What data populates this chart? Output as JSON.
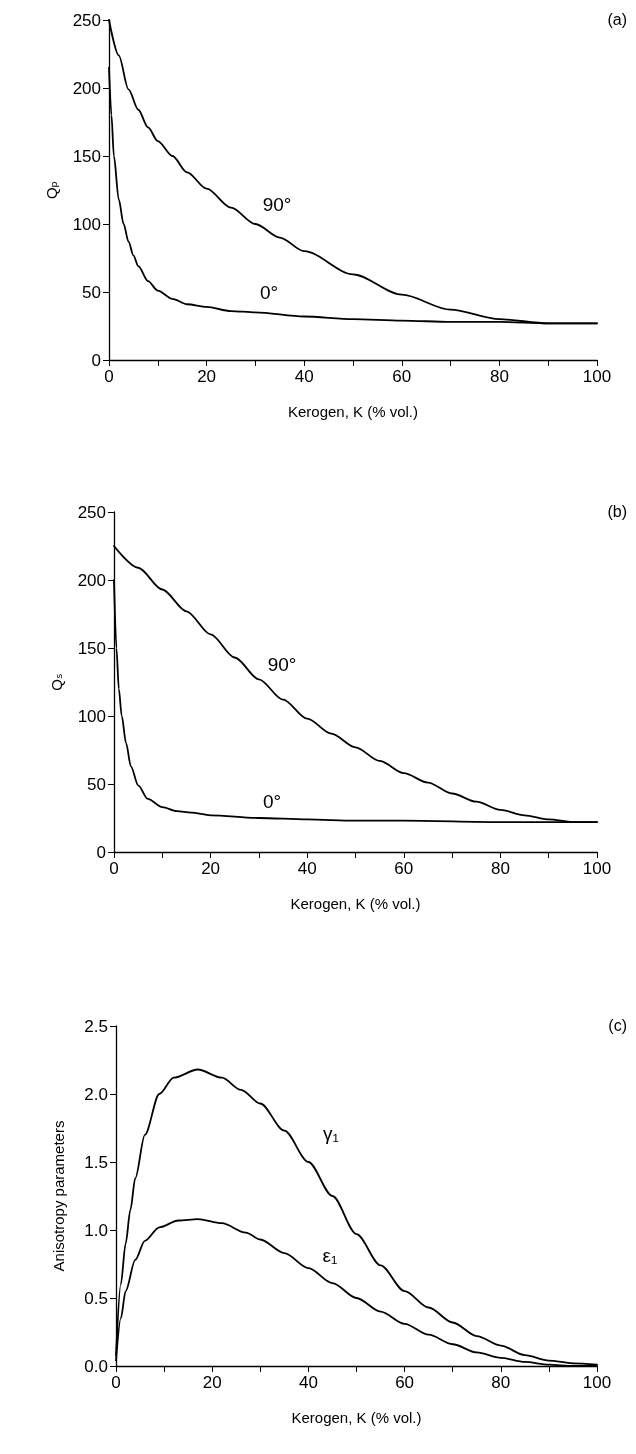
{
  "chart_data": [
    {
      "type": "line",
      "title": "(a)",
      "xlabel": "Kerogen, K (% vol.)",
      "ylabel": "Qₚ",
      "xlim": [
        0,
        100
      ],
      "ylim": [
        0,
        250
      ],
      "xticks": [
        0,
        {
          "value": 10,
          "label": null
        },
        20,
        {
          "value": 30,
          "label": null
        },
        40,
        {
          "value": 50,
          "label": null
        },
        60,
        {
          "value": 70,
          "label": null
        },
        80,
        {
          "value": 90,
          "label": null
        },
        100
      ],
      "yticks": [
        0,
        50,
        100,
        150,
        200,
        250
      ],
      "grid": false,
      "marker": "none",
      "line_style": "solid",
      "annotations": [
        "90°",
        "0°"
      ],
      "series": [
        {
          "color": "#000000",
          "x": [
            0,
            2,
            4,
            6,
            8,
            10,
            13,
            16,
            20,
            25,
            30,
            35,
            40,
            50,
            60,
            70,
            80,
            90,
            100
          ],
          "values": [
            250,
            224,
            199,
            184,
            171,
            161,
            150,
            138,
            126,
            112,
            100,
            90,
            80,
            63,
            48,
            37,
            30,
            27,
            27
          ]
        },
        {
          "color": "#000000",
          "x": [
            0,
            0.5,
            1,
            2,
            3,
            4,
            5,
            6,
            8,
            10,
            13,
            16,
            20,
            25,
            30,
            40,
            50,
            60,
            70,
            80,
            90,
            100
          ],
          "values": [
            215,
            180,
            150,
            118,
            100,
            87,
            77,
            69,
            58,
            51,
            45,
            41,
            39,
            36,
            35,
            32,
            30,
            29,
            28,
            28,
            27,
            27
          ]
        }
      ]
    },
    {
      "type": "line",
      "title": "(b)",
      "xlabel": "Kerogen, K (% vol.)",
      "ylabel": "Qₛ",
      "xlim": [
        0,
        100
      ],
      "ylim": [
        0,
        250
      ],
      "xticks": [
        0,
        {
          "value": 10,
          "label": null
        },
        20,
        {
          "value": 30,
          "label": null
        },
        40,
        {
          "value": 50,
          "label": null
        },
        60,
        {
          "value": 70,
          "label": null
        },
        80,
        {
          "value": 90,
          "label": null
        },
        100
      ],
      "yticks": [
        0,
        50,
        100,
        150,
        200,
        250
      ],
      "grid": false,
      "marker": "none",
      "line_style": "solid",
      "annotations": [
        "90°",
        "0°"
      ],
      "series": [
        {
          "color": "#000000",
          "x": [
            0,
            5,
            10,
            15,
            20,
            25,
            30,
            35,
            40,
            45,
            50,
            55,
            60,
            65,
            70,
            75,
            80,
            85,
            90,
            95,
            100
          ],
          "values": [
            225,
            209,
            193,
            177,
            160,
            143,
            127,
            112,
            98,
            87,
            77,
            67,
            58,
            51,
            43,
            37,
            31,
            27,
            24,
            22,
            22
          ]
        },
        {
          "color": "#000000",
          "x": [
            0,
            0.5,
            1,
            1.6,
            2.5,
            3.5,
            5,
            7,
            10,
            13,
            16,
            20,
            30,
            40,
            50,
            60,
            80,
            100
          ],
          "values": [
            200,
            150,
            120,
            100,
            80,
            63,
            49,
            39,
            33,
            30,
            29,
            27,
            25,
            24,
            23,
            23,
            22,
            22
          ]
        }
      ]
    },
    {
      "type": "line",
      "title": "(c)",
      "xlabel": "Kerogen, K (% vol.)",
      "ylabel": "Anisotropy parameters",
      "xlim": [
        0,
        100
      ],
      "ylim": [
        0,
        2.5
      ],
      "xticks": [
        0,
        {
          "value": 10,
          "label": null
        },
        20,
        {
          "value": 30,
          "label": null
        },
        40,
        {
          "value": 50,
          "label": null
        },
        60,
        {
          "value": 70,
          "label": null
        },
        80,
        {
          "value": 90,
          "label": null
        },
        100
      ],
      "yticks": [
        {
          "value": 0,
          "label": "0.0"
        },
        {
          "value": 0.5,
          "label": "0.5"
        },
        {
          "value": 1,
          "label": "1.0"
        },
        {
          "value": 1.5,
          "label": "1.5"
        },
        {
          "value": 2,
          "label": "2.0"
        },
        {
          "value": 2.5,
          "label": "2.5"
        }
      ],
      "grid": false,
      "marker": "none",
      "line_style": "solid",
      "annotations": [
        "γ₁",
        "ε₁"
      ],
      "series": [
        {
          "color": "#000000",
          "x": [
            0,
            1,
            2,
            3,
            4,
            6,
            9,
            12,
            17,
            22,
            26,
            30,
            35,
            40,
            45,
            50,
            55,
            60,
            65,
            70,
            75,
            80,
            85,
            90,
            95,
            100
          ],
          "values": [
            0.08,
            0.6,
            0.9,
            1.15,
            1.38,
            1.7,
            2.0,
            2.12,
            2.18,
            2.12,
            2.03,
            1.93,
            1.73,
            1.5,
            1.25,
            0.97,
            0.74,
            0.55,
            0.43,
            0.32,
            0.22,
            0.15,
            0.08,
            0.04,
            0.02,
            0.01
          ]
        },
        {
          "color": "#000000",
          "x": [
            0,
            1,
            2,
            4,
            6,
            9,
            13,
            17,
            22,
            27,
            30,
            35,
            40,
            45,
            50,
            55,
            60,
            65,
            70,
            75,
            80,
            85,
            90,
            95,
            100
          ],
          "values": [
            0.04,
            0.35,
            0.55,
            0.78,
            0.92,
            1.02,
            1.07,
            1.08,
            1.05,
            0.98,
            0.93,
            0.83,
            0.72,
            0.61,
            0.5,
            0.4,
            0.31,
            0.23,
            0.16,
            0.1,
            0.06,
            0.03,
            0.01,
            0,
            0
          ]
        }
      ]
    }
  ]
}
